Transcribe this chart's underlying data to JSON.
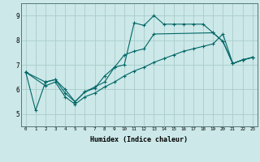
{
  "xlabel": "Humidex (Indice chaleur)",
  "bg_color": "#cce8e8",
  "grid_color": "#aacccc",
  "line_color": "#006666",
  "xlim": [
    -0.5,
    23.5
  ],
  "ylim": [
    4.5,
    9.5
  ],
  "xticks": [
    0,
    1,
    2,
    3,
    4,
    5,
    6,
    7,
    8,
    9,
    10,
    11,
    12,
    13,
    14,
    15,
    16,
    17,
    18,
    19,
    20,
    21,
    22,
    23
  ],
  "yticks": [
    5,
    6,
    7,
    8,
    9
  ],
  "line1_x": [
    0,
    1,
    2,
    3,
    4,
    5,
    6,
    7,
    8,
    9,
    10,
    11,
    12,
    13,
    14,
    15,
    16,
    17,
    18,
    19,
    20,
    21,
    22,
    23
  ],
  "line1_y": [
    6.7,
    5.15,
    6.3,
    6.4,
    6.0,
    5.5,
    5.9,
    6.1,
    6.3,
    6.9,
    7.0,
    8.7,
    8.6,
    9.0,
    8.65,
    8.65,
    8.65,
    8.65,
    8.65,
    8.3,
    7.95,
    7.05,
    7.2,
    7.3
  ],
  "line2_x": [
    0,
    2,
    3,
    4,
    5,
    6,
    7,
    8,
    9,
    10,
    11,
    12,
    13,
    19,
    20,
    21,
    22,
    23
  ],
  "line2_y": [
    6.7,
    6.3,
    6.4,
    5.85,
    5.5,
    5.9,
    6.05,
    6.55,
    6.9,
    7.4,
    7.55,
    7.65,
    8.25,
    8.3,
    7.95,
    7.05,
    7.2,
    7.3
  ],
  "line3_x": [
    0,
    2,
    3,
    4,
    5,
    6,
    7,
    8,
    9,
    10,
    11,
    12,
    13,
    14,
    15,
    16,
    17,
    18,
    19,
    20,
    21,
    22,
    23
  ],
  "line3_y": [
    6.7,
    6.15,
    6.3,
    5.7,
    5.4,
    5.7,
    5.85,
    6.1,
    6.3,
    6.55,
    6.75,
    6.9,
    7.1,
    7.25,
    7.4,
    7.55,
    7.65,
    7.75,
    7.85,
    8.25,
    7.05,
    7.2,
    7.3
  ]
}
